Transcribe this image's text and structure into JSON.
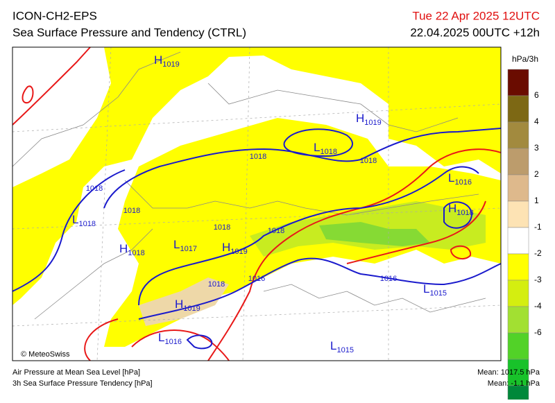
{
  "header": {
    "model": "ICON-CH2-EPS",
    "title": "Sea Surface Pressure and Tendency (CTRL)",
    "valid": "Tue 22 Apr 2025 12UTC",
    "run": "22.04.2025 00UTC +12h"
  },
  "legend": {
    "unit": "hPa/3h",
    "colors": [
      "#6a0c00",
      "#7d6814",
      "#a28a3e",
      "#bc9c6c",
      "#deb98c",
      "#fde3b4",
      "#ffffff",
      "#ffff00",
      "#d4ee10",
      "#a2e032",
      "#52d228",
      "#18c22a",
      "#00883a"
    ],
    "labels": [
      "6",
      "4",
      "3",
      "2",
      "1",
      "-1",
      "-2",
      "-3",
      "-4",
      "-6"
    ]
  },
  "map": {
    "centers": [
      {
        "letter": "H",
        "value": "1019"
      },
      {
        "letter": "H",
        "value": "1019"
      },
      {
        "letter": "L",
        "value": "1018"
      },
      {
        "letter": "L",
        "value": "1016"
      },
      {
        "letter": "H",
        "value": "1018"
      },
      {
        "letter": "L",
        "value": "1018"
      },
      {
        "letter": "H",
        "value": "1018"
      },
      {
        "letter": "L",
        "value": "1017"
      },
      {
        "letter": "H",
        "value": "1019"
      },
      {
        "letter": "H",
        "value": "1019"
      },
      {
        "letter": "L",
        "value": "1016"
      },
      {
        "letter": "L",
        "value": "1015"
      },
      {
        "letter": "L",
        "value": "1015"
      }
    ],
    "isobar_labels": [
      "1018",
      "1018",
      "1018",
      "1018",
      "1018",
      "1018",
      "1016",
      "1016",
      "1018"
    ],
    "credit": "© MeteoSwiss"
  },
  "footer": {
    "line1": "Air Pressure at Mean Sea Level [hPa]",
    "line2": "3h Sea Surface Pressure Tendency [hPa]",
    "mean1": "Mean: 1017.5 hPa",
    "mean2": "Mean:  -1.1 hPa"
  }
}
